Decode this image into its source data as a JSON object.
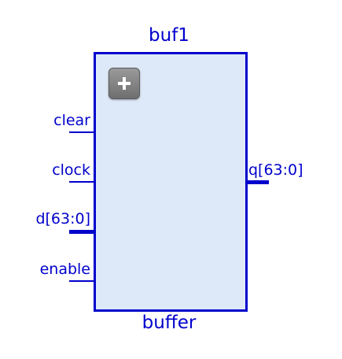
{
  "block": {
    "instance_name": "buf1",
    "module_name": "buffer"
  },
  "expand_icon": "plus-icon",
  "ports": {
    "clear": "clear",
    "clock": "clock",
    "d": "d[63:0]",
    "enable": "enable",
    "q": "q[63:0]"
  },
  "colors": {
    "stroke": "#0000cc",
    "fill": "#dde9f8",
    "button": "#808080"
  }
}
